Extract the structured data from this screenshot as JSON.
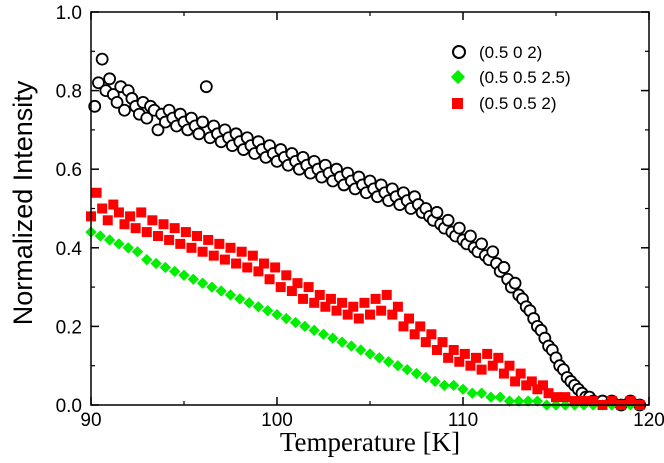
{
  "chart_data": {
    "type": "scatter",
    "title": "",
    "xlabel": "Temperature [K]",
    "ylabel": "Normalized Intensity",
    "xlim": [
      90,
      120
    ],
    "ylim": [
      0.0,
      1.0
    ],
    "xticks": [
      90,
      100,
      110,
      120
    ],
    "xtick_labels": [
      "90",
      "100",
      "110",
      "120"
    ],
    "yticks": [
      0.0,
      0.2,
      0.4,
      0.6,
      0.8,
      1.0
    ],
    "ytick_labels": [
      "0.0",
      "0.2",
      "0.4",
      "0.6",
      "0.8",
      "1.0"
    ],
    "legend_position": "top-right",
    "series": [
      {
        "name": "(0.5 0 2)",
        "marker": "open-circle",
        "color": "#000000",
        "points": [
          [
            90.2,
            0.76
          ],
          [
            90.4,
            0.82
          ],
          [
            90.6,
            0.88
          ],
          [
            90.8,
            0.8
          ],
          [
            91.0,
            0.83
          ],
          [
            91.2,
            0.79
          ],
          [
            91.4,
            0.77
          ],
          [
            91.6,
            0.81
          ],
          [
            91.8,
            0.75
          ],
          [
            92.0,
            0.8
          ],
          [
            92.2,
            0.78
          ],
          [
            92.4,
            0.76
          ],
          [
            92.6,
            0.74
          ],
          [
            92.8,
            0.77
          ],
          [
            93.0,
            0.73
          ],
          [
            93.2,
            0.76
          ],
          [
            93.4,
            0.75
          ],
          [
            93.6,
            0.7
          ],
          [
            93.8,
            0.74
          ],
          [
            94.0,
            0.72
          ],
          [
            94.2,
            0.75
          ],
          [
            94.4,
            0.73
          ],
          [
            94.6,
            0.71
          ],
          [
            94.8,
            0.74
          ],
          [
            95.0,
            0.72
          ],
          [
            95.2,
            0.7
          ],
          [
            95.4,
            0.73
          ],
          [
            95.6,
            0.71
          ],
          [
            95.8,
            0.69
          ],
          [
            96.0,
            0.72
          ],
          [
            96.2,
            0.81
          ],
          [
            96.4,
            0.68
          ],
          [
            96.6,
            0.71
          ],
          [
            96.8,
            0.69
          ],
          [
            97.0,
            0.67
          ],
          [
            97.2,
            0.7
          ],
          [
            97.4,
            0.68
          ],
          [
            97.6,
            0.66
          ],
          [
            97.8,
            0.69
          ],
          [
            98.0,
            0.67
          ],
          [
            98.2,
            0.65
          ],
          [
            98.4,
            0.68
          ],
          [
            98.6,
            0.66
          ],
          [
            98.8,
            0.64
          ],
          [
            99.0,
            0.67
          ],
          [
            99.2,
            0.65
          ],
          [
            99.4,
            0.63
          ],
          [
            99.6,
            0.66
          ],
          [
            99.8,
            0.64
          ],
          [
            100.0,
            0.62
          ],
          [
            100.2,
            0.65
          ],
          [
            100.4,
            0.63
          ],
          [
            100.6,
            0.61
          ],
          [
            100.8,
            0.64
          ],
          [
            101.0,
            0.62
          ],
          [
            101.2,
            0.6
          ],
          [
            101.4,
            0.63
          ],
          [
            101.6,
            0.61
          ],
          [
            101.8,
            0.59
          ],
          [
            102.0,
            0.62
          ],
          [
            102.2,
            0.6
          ],
          [
            102.4,
            0.58
          ],
          [
            102.6,
            0.61
          ],
          [
            102.8,
            0.59
          ],
          [
            103.0,
            0.57
          ],
          [
            103.2,
            0.6
          ],
          [
            103.4,
            0.58
          ],
          [
            103.6,
            0.56
          ],
          [
            103.8,
            0.59
          ],
          [
            104.0,
            0.57
          ],
          [
            104.2,
            0.55
          ],
          [
            104.4,
            0.58
          ],
          [
            104.6,
            0.56
          ],
          [
            104.8,
            0.54
          ],
          [
            105.0,
            0.57
          ],
          [
            105.2,
            0.55
          ],
          [
            105.4,
            0.53
          ],
          [
            105.6,
            0.56
          ],
          [
            105.8,
            0.54
          ],
          [
            106.0,
            0.52
          ],
          [
            106.2,
            0.55
          ],
          [
            106.4,
            0.53
          ],
          [
            106.6,
            0.51
          ],
          [
            106.8,
            0.54
          ],
          [
            107.0,
            0.52
          ],
          [
            107.2,
            0.5
          ],
          [
            107.4,
            0.53
          ],
          [
            107.6,
            0.51
          ],
          [
            107.8,
            0.49
          ],
          [
            108.0,
            0.5
          ],
          [
            108.2,
            0.48
          ],
          [
            108.4,
            0.47
          ],
          [
            108.6,
            0.49
          ],
          [
            108.8,
            0.46
          ],
          [
            109.0,
            0.45
          ],
          [
            109.2,
            0.47
          ],
          [
            109.4,
            0.44
          ],
          [
            109.6,
            0.43
          ],
          [
            109.8,
            0.45
          ],
          [
            110.0,
            0.42
          ],
          [
            110.2,
            0.41
          ],
          [
            110.4,
            0.43
          ],
          [
            110.6,
            0.4
          ],
          [
            110.8,
            0.39
          ],
          [
            111.0,
            0.41
          ],
          [
            111.2,
            0.38
          ],
          [
            111.4,
            0.37
          ],
          [
            111.6,
            0.39
          ],
          [
            111.8,
            0.36
          ],
          [
            112.0,
            0.34
          ],
          [
            112.2,
            0.35
          ],
          [
            112.4,
            0.32
          ],
          [
            112.6,
            0.3
          ],
          [
            112.8,
            0.31
          ],
          [
            113.0,
            0.28
          ],
          [
            113.2,
            0.27
          ],
          [
            113.4,
            0.25
          ],
          [
            113.6,
            0.24
          ],
          [
            113.8,
            0.22
          ],
          [
            114.0,
            0.2
          ],
          [
            114.2,
            0.19
          ],
          [
            114.4,
            0.17
          ],
          [
            114.6,
            0.15
          ],
          [
            114.8,
            0.14
          ],
          [
            115.0,
            0.12
          ],
          [
            115.2,
            0.1
          ],
          [
            115.4,
            0.09
          ],
          [
            115.6,
            0.07
          ],
          [
            115.8,
            0.06
          ],
          [
            116.0,
            0.05
          ],
          [
            116.2,
            0.04
          ],
          [
            116.4,
            0.03
          ],
          [
            116.6,
            0.02
          ],
          [
            116.8,
            0.02
          ],
          [
            117.0,
            0.01
          ],
          [
            117.5,
            0.01
          ],
          [
            118.0,
            0.01
          ],
          [
            118.5,
            0.0
          ],
          [
            119.0,
            0.01
          ],
          [
            119.5,
            0.0
          ]
        ]
      },
      {
        "name": "(0.5 0.5 2.5)",
        "marker": "filled-diamond",
        "color": "#00ee00",
        "points": [
          [
            90.0,
            0.44
          ],
          [
            90.5,
            0.43
          ],
          [
            91.0,
            0.42
          ],
          [
            91.5,
            0.41
          ],
          [
            92.0,
            0.4
          ],
          [
            92.5,
            0.39
          ],
          [
            93.0,
            0.37
          ],
          [
            93.5,
            0.36
          ],
          [
            94.0,
            0.35
          ],
          [
            94.5,
            0.34
          ],
          [
            95.0,
            0.33
          ],
          [
            95.5,
            0.32
          ],
          [
            96.0,
            0.31
          ],
          [
            96.5,
            0.3
          ],
          [
            97.0,
            0.29
          ],
          [
            97.5,
            0.28
          ],
          [
            98.0,
            0.27
          ],
          [
            98.5,
            0.26
          ],
          [
            99.0,
            0.25
          ],
          [
            99.5,
            0.24
          ],
          [
            100.0,
            0.23
          ],
          [
            100.5,
            0.22
          ],
          [
            101.0,
            0.21
          ],
          [
            101.5,
            0.2
          ],
          [
            102.0,
            0.19
          ],
          [
            102.5,
            0.18
          ],
          [
            103.0,
            0.17
          ],
          [
            103.5,
            0.16
          ],
          [
            104.0,
            0.15
          ],
          [
            104.5,
            0.14
          ],
          [
            105.0,
            0.13
          ],
          [
            105.5,
            0.12
          ],
          [
            106.0,
            0.11
          ],
          [
            106.5,
            0.1
          ],
          [
            107.0,
            0.09
          ],
          [
            107.5,
            0.08
          ],
          [
            108.0,
            0.07
          ],
          [
            108.5,
            0.06
          ],
          [
            109.0,
            0.05
          ],
          [
            109.5,
            0.05
          ],
          [
            110.0,
            0.04
          ],
          [
            110.5,
            0.03
          ],
          [
            111.0,
            0.03
          ],
          [
            111.5,
            0.02
          ],
          [
            112.0,
            0.02
          ],
          [
            112.5,
            0.01
          ],
          [
            113.0,
            0.01
          ],
          [
            113.5,
            0.01
          ],
          [
            114.0,
            0.01
          ],
          [
            114.5,
            0.0
          ],
          [
            115.0,
            0.0
          ],
          [
            115.5,
            0.0
          ],
          [
            116.0,
            0.0
          ],
          [
            116.5,
            0.0
          ],
          [
            117.0,
            0.0
          ],
          [
            117.5,
            0.0
          ],
          [
            118.0,
            0.0
          ],
          [
            118.5,
            0.0
          ],
          [
            119.0,
            0.0
          ],
          [
            119.5,
            0.0
          ]
        ]
      },
      {
        "name": "(0.5 0.5 2)",
        "marker": "filled-square",
        "color": "#ff0000",
        "points": [
          [
            90.0,
            0.48
          ],
          [
            90.3,
            0.54
          ],
          [
            90.6,
            0.5
          ],
          [
            90.9,
            0.47
          ],
          [
            91.2,
            0.51
          ],
          [
            91.5,
            0.49
          ],
          [
            91.8,
            0.46
          ],
          [
            92.1,
            0.48
          ],
          [
            92.4,
            0.45
          ],
          [
            92.7,
            0.49
          ],
          [
            93.0,
            0.44
          ],
          [
            93.3,
            0.47
          ],
          [
            93.6,
            0.43
          ],
          [
            93.9,
            0.46
          ],
          [
            94.2,
            0.42
          ],
          [
            94.5,
            0.45
          ],
          [
            94.8,
            0.41
          ],
          [
            95.1,
            0.44
          ],
          [
            95.4,
            0.4
          ],
          [
            95.7,
            0.43
          ],
          [
            96.0,
            0.39
          ],
          [
            96.3,
            0.42
          ],
          [
            96.6,
            0.38
          ],
          [
            96.9,
            0.41
          ],
          [
            97.2,
            0.37
          ],
          [
            97.5,
            0.4
          ],
          [
            97.8,
            0.36
          ],
          [
            98.1,
            0.39
          ],
          [
            98.4,
            0.35
          ],
          [
            98.7,
            0.38
          ],
          [
            99.0,
            0.34
          ],
          [
            99.3,
            0.36
          ],
          [
            99.6,
            0.32
          ],
          [
            99.9,
            0.35
          ],
          [
            100.2,
            0.3
          ],
          [
            100.5,
            0.33
          ],
          [
            100.8,
            0.29
          ],
          [
            101.1,
            0.31
          ],
          [
            101.4,
            0.27
          ],
          [
            101.7,
            0.3
          ],
          [
            102.0,
            0.26
          ],
          [
            102.3,
            0.28
          ],
          [
            102.6,
            0.25
          ],
          [
            102.9,
            0.27
          ],
          [
            103.2,
            0.24
          ],
          [
            103.5,
            0.26
          ],
          [
            103.8,
            0.23
          ],
          [
            104.1,
            0.25
          ],
          [
            104.4,
            0.22
          ],
          [
            104.7,
            0.26
          ],
          [
            105.0,
            0.23
          ],
          [
            105.3,
            0.27
          ],
          [
            105.6,
            0.24
          ],
          [
            105.9,
            0.28
          ],
          [
            106.2,
            0.23
          ],
          [
            106.5,
            0.25
          ],
          [
            106.8,
            0.2
          ],
          [
            107.1,
            0.22
          ],
          [
            107.4,
            0.18
          ],
          [
            107.7,
            0.2
          ],
          [
            108.0,
            0.16
          ],
          [
            108.3,
            0.18
          ],
          [
            108.6,
            0.14
          ],
          [
            108.9,
            0.16
          ],
          [
            109.2,
            0.12
          ],
          [
            109.5,
            0.14
          ],
          [
            109.8,
            0.11
          ],
          [
            110.1,
            0.13
          ],
          [
            110.4,
            0.1
          ],
          [
            110.7,
            0.12
          ],
          [
            111.0,
            0.09
          ],
          [
            111.3,
            0.13
          ],
          [
            111.6,
            0.1
          ],
          [
            111.9,
            0.12
          ],
          [
            112.2,
            0.08
          ],
          [
            112.5,
            0.1
          ],
          [
            112.8,
            0.06
          ],
          [
            113.1,
            0.08
          ],
          [
            113.4,
            0.05
          ],
          [
            113.7,
            0.06
          ],
          [
            114.0,
            0.04
          ],
          [
            114.3,
            0.05
          ],
          [
            114.6,
            0.03
          ],
          [
            115.0,
            0.02
          ],
          [
            115.5,
            0.02
          ],
          [
            116.0,
            0.01
          ],
          [
            116.5,
            0.01
          ],
          [
            117.0,
            0.01
          ],
          [
            117.5,
            0.0
          ],
          [
            118.0,
            0.01
          ],
          [
            118.5,
            0.0
          ],
          [
            119.0,
            0.01
          ],
          [
            119.5,
            0.0
          ]
        ]
      }
    ]
  }
}
